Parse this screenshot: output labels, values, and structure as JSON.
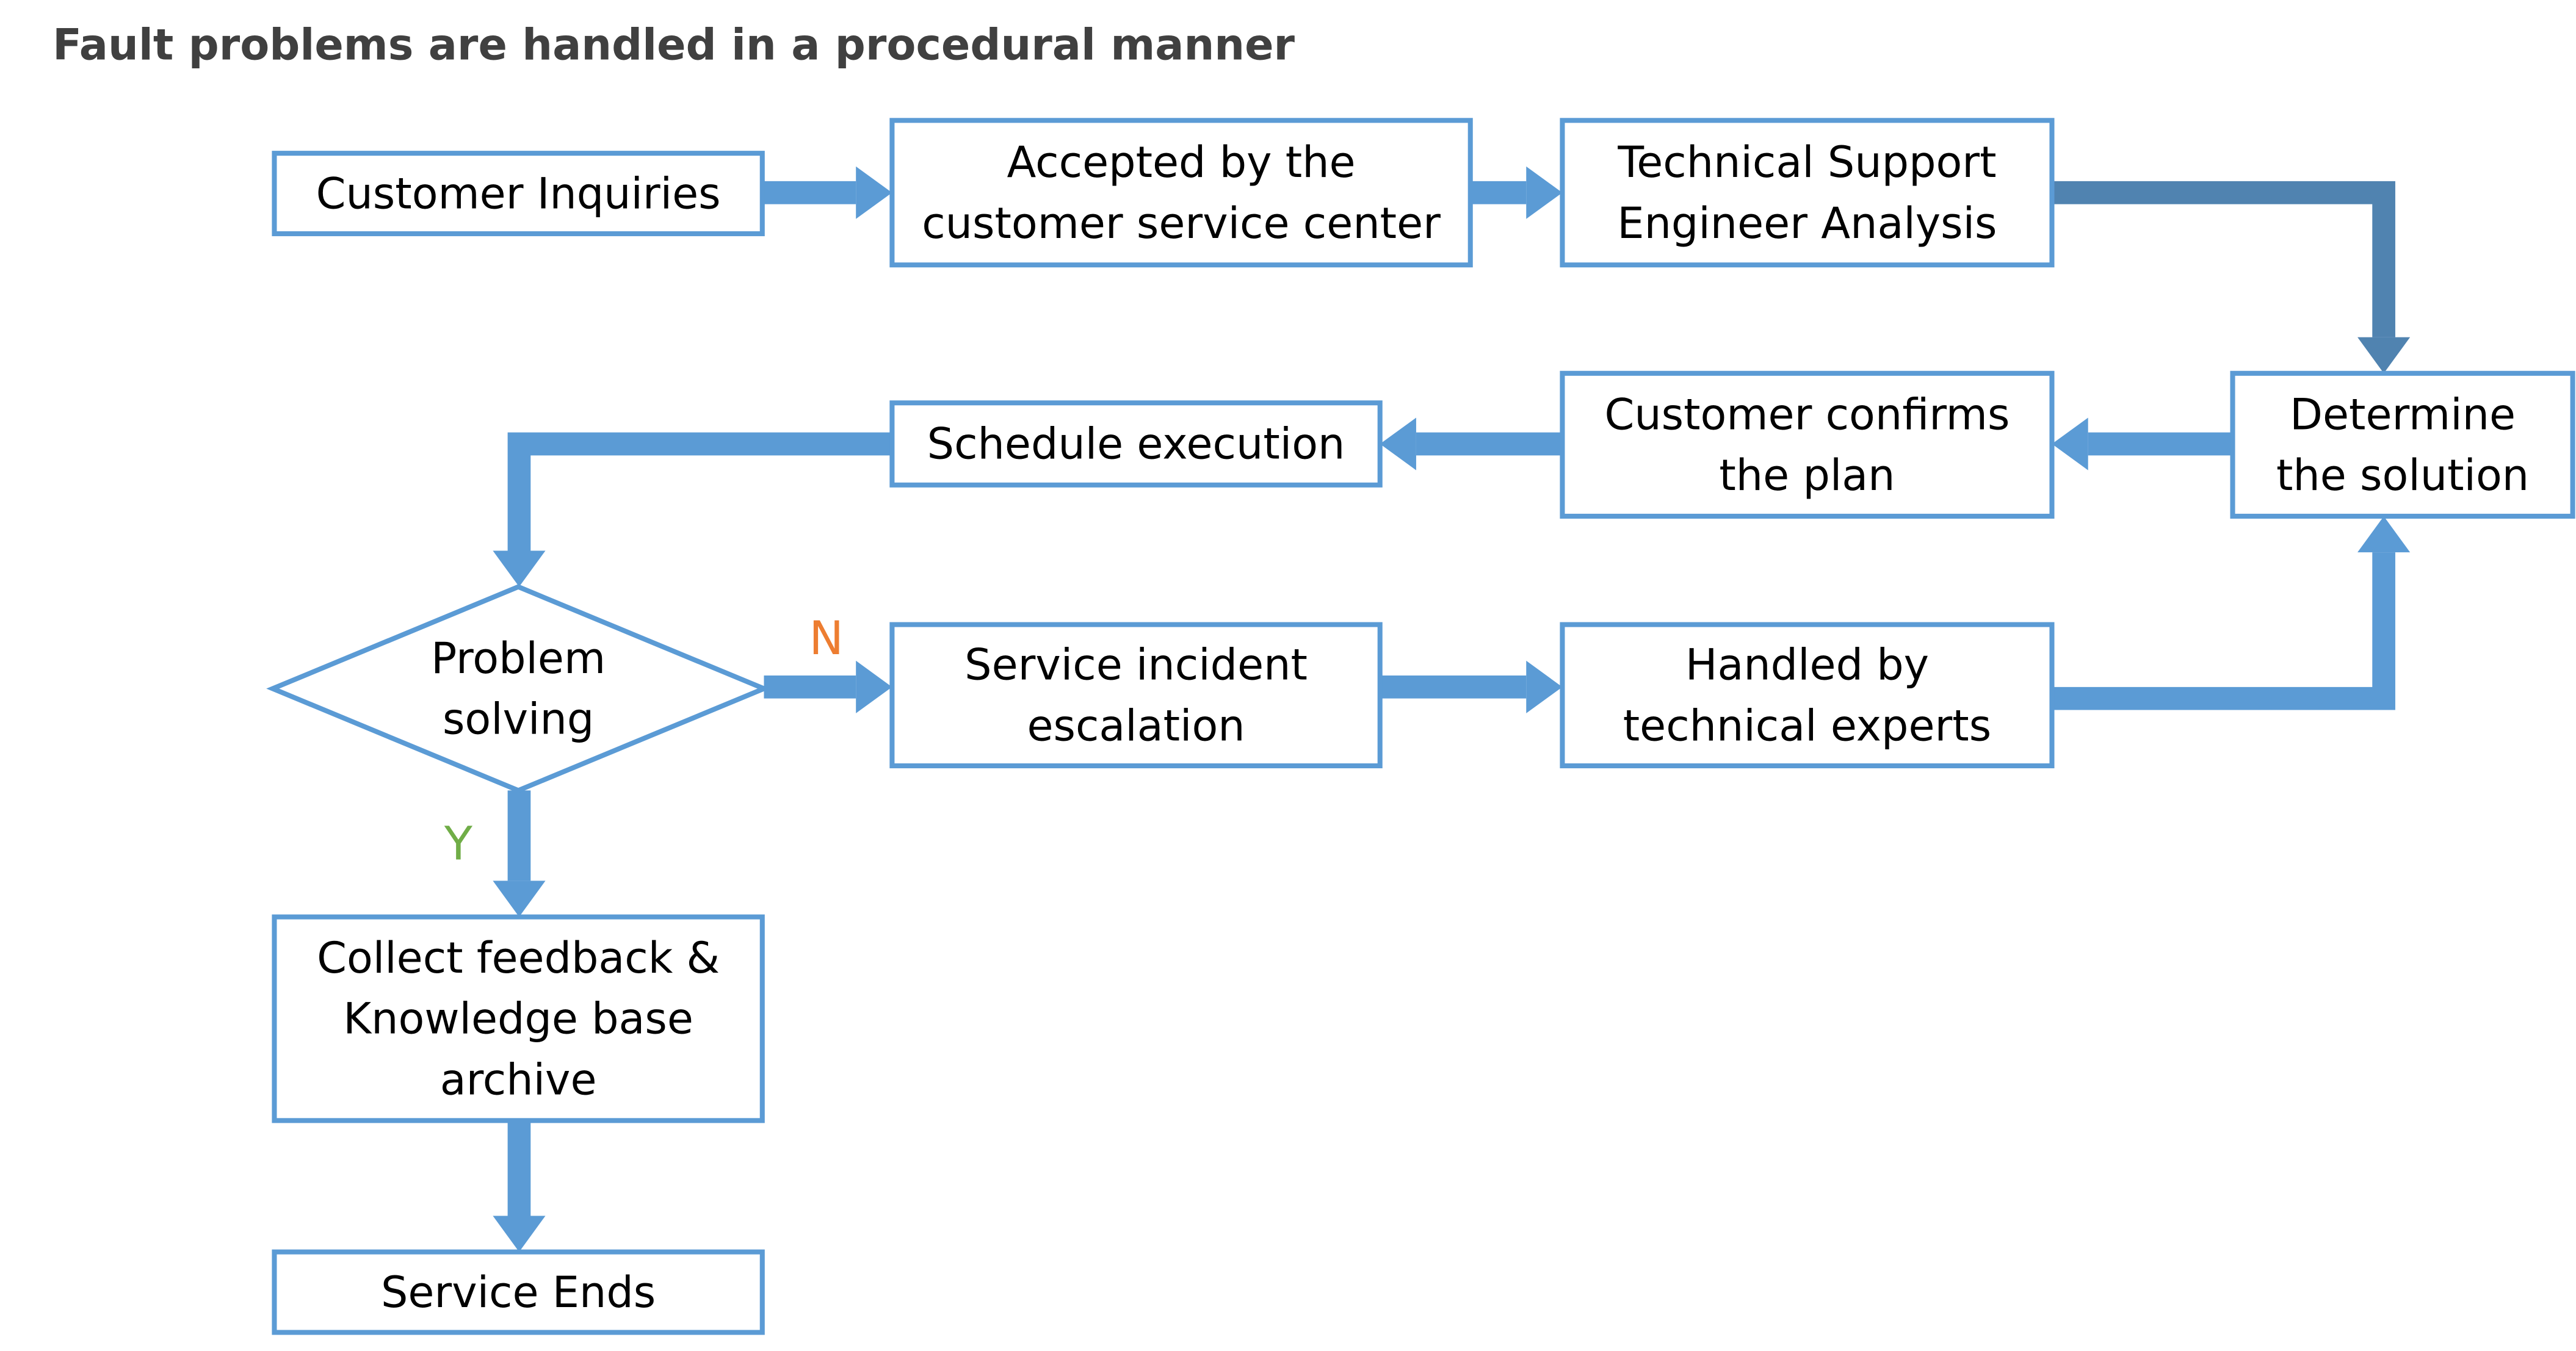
{
  "title": "Fault problems are handled in a procedural manner",
  "colors": {
    "box_border": "#5B9BD5",
    "arrow": "#5B9BD5",
    "arrow_dark": "#5083B0",
    "no_label": "#ED7D31",
    "yes_label": "#70AD47",
    "title": "#404040"
  },
  "nodes": [
    {
      "id": "customer-inquiries",
      "lines": [
        "Customer Inquiries"
      ]
    },
    {
      "id": "accepted",
      "lines": [
        "Accepted by the",
        "customer service center"
      ]
    },
    {
      "id": "tech-support",
      "lines": [
        "Technical Support",
        "Engineer Analysis"
      ]
    },
    {
      "id": "determine",
      "lines": [
        "Determine",
        "the solution"
      ]
    },
    {
      "id": "confirms",
      "lines": [
        "Customer confirms",
        "the plan"
      ]
    },
    {
      "id": "schedule",
      "lines": [
        "Schedule execution"
      ]
    },
    {
      "id": "problem-solving",
      "lines": [
        "Problem",
        "solving"
      ],
      "shape": "diamond"
    },
    {
      "id": "escalation",
      "lines": [
        "Service incident",
        "escalation"
      ]
    },
    {
      "id": "experts",
      "lines": [
        "Handled by",
        "technical experts"
      ]
    },
    {
      "id": "feedback",
      "lines": [
        "Collect feedback &",
        "Knowledge base",
        "archive"
      ]
    },
    {
      "id": "service-ends",
      "lines": [
        "Service Ends"
      ]
    }
  ],
  "edges": [
    {
      "from": "customer-inquiries",
      "to": "accepted"
    },
    {
      "from": "accepted",
      "to": "tech-support"
    },
    {
      "from": "tech-support",
      "to": "determine",
      "dark": true
    },
    {
      "from": "determine",
      "to": "confirms"
    },
    {
      "from": "confirms",
      "to": "schedule"
    },
    {
      "from": "schedule",
      "to": "problem-solving"
    },
    {
      "from": "problem-solving",
      "to": "escalation",
      "label": "N"
    },
    {
      "from": "escalation",
      "to": "experts"
    },
    {
      "from": "experts",
      "to": "determine"
    },
    {
      "from": "problem-solving",
      "to": "feedback",
      "label": "Y"
    },
    {
      "from": "feedback",
      "to": "service-ends"
    }
  ],
  "labels": {
    "no": "N",
    "yes": "Y"
  }
}
